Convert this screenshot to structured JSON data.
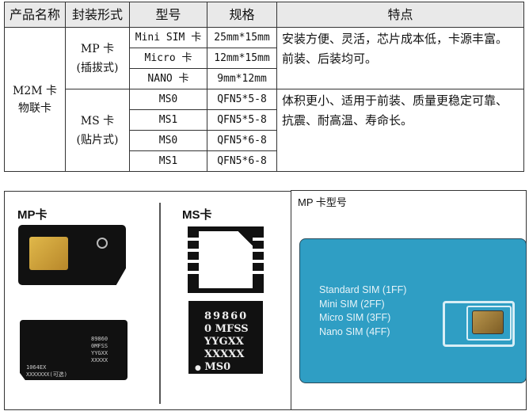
{
  "table": {
    "headers": [
      "产品名称",
      "封装形式",
      "型号",
      "规格",
      "特点"
    ],
    "product_name": "M2M 卡\n物联卡",
    "groups": [
      {
        "package": "MP 卡\n(插拔式)",
        "feature": "安装方便、灵活，芯片成本低，卡源丰富。前装、后装均可。",
        "rows": [
          {
            "model": "Mini SIM 卡",
            "spec": "25mm*15mm"
          },
          {
            "model": "Micro 卡",
            "spec": "12mm*15mm"
          },
          {
            "model": "NANO 卡",
            "spec": "9mm*12mm"
          }
        ]
      },
      {
        "package": "MS 卡\n(贴片式)",
        "feature": "体积更小、适用于前装、质量更稳定可靠、抗震、耐高温、寿命长。",
        "rows": [
          {
            "model": "MS0",
            "spec": "QFN5*5-8"
          },
          {
            "model": "MS1",
            "spec": "QFN5*5-8"
          },
          {
            "model": "MS0",
            "spec": "QFN5*6-8"
          },
          {
            "model": "MS1",
            "spec": "QFN5*6-8"
          }
        ]
      }
    ]
  },
  "figure_left": {
    "mp_title": "MP卡",
    "ms_title": "MS卡",
    "mp_card_back": {
      "lines": [
        "89860",
        "0MFSS",
        "YYGXX",
        "XXXXX"
      ],
      "bottom": [
        "1064EX",
        "XXXXXXX(可选)"
      ]
    },
    "ms_chip_text": [
      "89860",
      "0 MFSS",
      "YYGXX",
      "XXXXX",
      "MS0"
    ]
  },
  "figure_right": {
    "title": "MP 卡型号",
    "card_color": "#2f9ec4",
    "labels": [
      "Standard SIM (1FF)",
      "Mini SIM (2FF)",
      "Micro SIM (3FF)",
      "Nano SIM (4FF)"
    ]
  }
}
